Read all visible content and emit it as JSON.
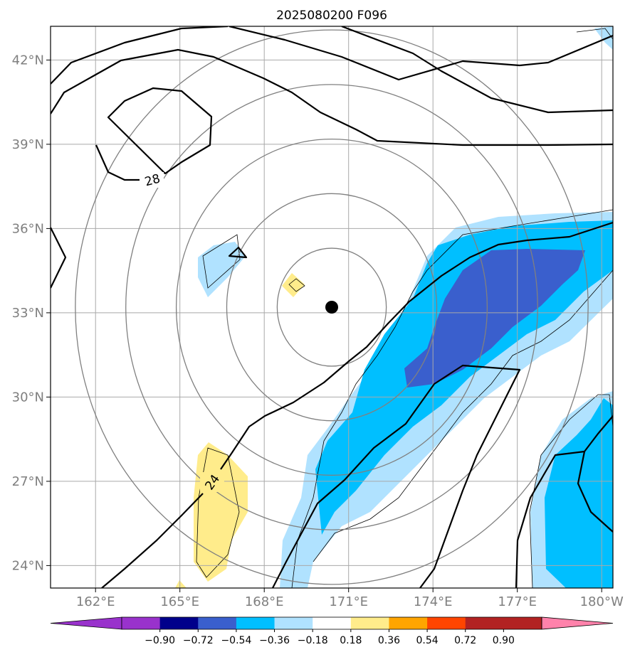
{
  "title": "2025080200 F096",
  "chart_data": {
    "type": "contour-map",
    "title": "2025080200 F096",
    "xlabel": "",
    "ylabel": "",
    "lon_range_degE": [
      160.4,
      180.4
    ],
    "lat_range_degN": [
      23.2,
      43.2
    ],
    "grid": true,
    "x_ticks": [
      162,
      165,
      168,
      171,
      174,
      177,
      180
    ],
    "x_tick_labels": [
      "162°E",
      "165°E",
      "168°E",
      "171°E",
      "174°E",
      "177°E",
      "180°W"
    ],
    "y_ticks": [
      24,
      27,
      30,
      33,
      36,
      39,
      42
    ],
    "y_tick_labels": [
      "24°N",
      "27°N",
      "30°N",
      "33°N",
      "36°N",
      "39°N",
      "42°N"
    ],
    "center_marker": {
      "lon": 170.4,
      "lat": 33.2
    },
    "range_rings_center": {
      "lon": 170.4,
      "lat": 33.2
    },
    "contour_labels": [
      {
        "text": "28",
        "lon": 164.0,
        "lat": 37.9
      },
      {
        "text": "24",
        "lon": 166.1,
        "lat": 26.9
      }
    ],
    "colorbar": {
      "levels": [
        -0.9,
        -0.72,
        -0.54,
        -0.36,
        -0.18,
        0.18,
        0.36,
        0.54,
        0.72,
        0.9
      ],
      "tick_labels": [
        "−0.90",
        "−0.72",
        "−0.54",
        "−0.36",
        "−0.18",
        "0.18",
        "0.36",
        "0.54",
        "0.72",
        "0.90"
      ],
      "colors": [
        "#9932cc",
        "#00008b",
        "#3a5fcd",
        "#00bfff",
        "#b0e2ff",
        "#ffffff",
        "#ffec8b",
        "#ffa500",
        "#ff4500",
        "#b22222",
        "#ff82ab"
      ],
      "extend": "both"
    },
    "filled_regions": [
      {
        "level": "-0.36 to -0.18",
        "color": "#b0e2ff",
        "area": "broad SW–NE band from 168°E,23°N to 180°,36°N"
      },
      {
        "level": "-0.54 to -0.36",
        "color": "#00bfff",
        "area": "inner SW–NE band from 170°E,25°N to 180°,35.5°N"
      },
      {
        "level": "-0.72 to -0.54",
        "color": "#3a5fcd",
        "area": "core near 173–178°E, 31–35°N"
      },
      {
        "level": "-0.36 to -0.18",
        "color": "#b0e2ff",
        "area": "small patch near 166.5°E, 34.5°N"
      },
      {
        "level": "0.18 to 0.36",
        "color": "#ffec8b",
        "area": "patch near 166.5°E, 24–28°N"
      },
      {
        "level": "0.18 to 0.36",
        "color": "#ffec8b",
        "area": "small patch near 169°E, 34°N"
      },
      {
        "level": "-0.54 to -0.36",
        "color": "#00bfff",
        "area": "SE corner near 178–180°E, 23–28°N"
      }
    ]
  }
}
